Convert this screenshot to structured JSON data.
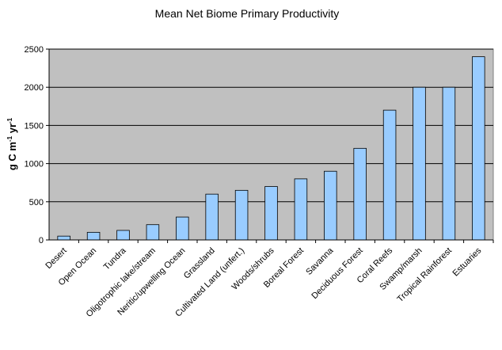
{
  "chart_data": {
    "type": "bar",
    "title": "Mean Net Biome Primary Productivity",
    "ylabel": {
      "main": "g C m",
      "sup1": "-1",
      "mid": " yr",
      "sup2": "-1"
    },
    "xlabel": "",
    "ylim": [
      0,
      2500
    ],
    "yticks": [
      0,
      500,
      1000,
      1500,
      2000,
      2500
    ],
    "grid": true,
    "legend": "none",
    "categories": [
      "Desert",
      "Open Ocean",
      "Tundra",
      "Oligotrophic lake/stream",
      "Neritic/upwelling Ocean",
      "Grassland",
      "Cultivated Land (unfert.)",
      "Woods/shrubs",
      "Boreal Forest",
      "Savanna",
      "Deciduous Forest",
      "Coral Reefs",
      "Swamp/marsh",
      "Tropical Rainforest",
      "Estuaries"
    ],
    "values": [
      50,
      100,
      125,
      200,
      300,
      600,
      650,
      700,
      800,
      900,
      1200,
      1700,
      2000,
      2000,
      2400
    ],
    "colors": {
      "plot_bg": "#c0c0c0",
      "bar_fill": "#99ccff",
      "bar_stroke": "#000000",
      "grid": "#000000"
    }
  }
}
